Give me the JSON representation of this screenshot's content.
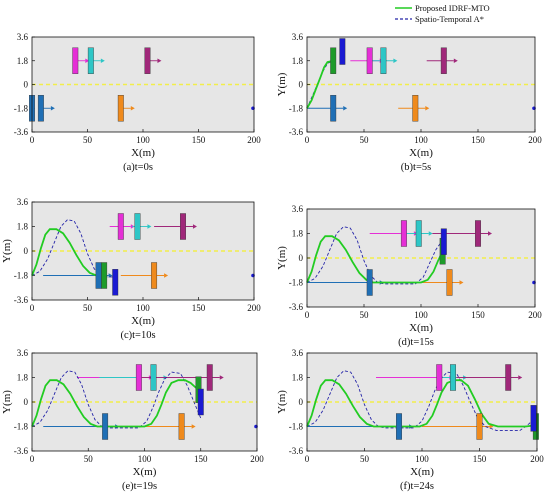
{
  "legend": {
    "entries": [
      {
        "label": "Proposed IDRF-MTO",
        "color": "#22cc22",
        "style": "solid"
      },
      {
        "label": "Spatio-Temporal A*",
        "color": "#2424a8",
        "style": "dashed"
      }
    ],
    "placement": "top-right"
  },
  "colors": {
    "plot_bg": "#e6e6e6",
    "centerline": "#f2ee4a",
    "ego_path": "#22cc22",
    "astar_path": "#2424a8",
    "vehicles": {
      "magenta": "#e52fd6",
      "cyan": "#2ec6c6",
      "purple": "#a0287a",
      "blue": "#1f6fb5",
      "orange": "#ef8a1c",
      "green": "#1e9b2a",
      "navy": "#1a1ad2"
    }
  },
  "chart_data": [
    {
      "type": "scatter",
      "caption": "(a)t=0s",
      "xlabel": "X(m)",
      "ylabel": "Y(m)",
      "xlim": [
        0,
        200
      ],
      "ylim": [
        -3.6,
        3.6
      ],
      "xticks": [
        "0",
        "50",
        "100",
        "150",
        "200"
      ],
      "yticks": [
        "3.6",
        "1.8",
        "0",
        "-1.8",
        "-3.6"
      ],
      "ylabel_visible": false,
      "ego_path": [],
      "astar_path": [],
      "vehicles": [
        {
          "x": 0,
          "y": -1.8,
          "color": "blue"
        },
        {
          "x": 8,
          "y": -1.8,
          "color": "blue",
          "trail_from": 8
        },
        {
          "x": 39,
          "y": 1.8,
          "color": "magenta",
          "trail_from": 39
        },
        {
          "x": 53,
          "y": 1.8,
          "color": "cyan",
          "trail_from": 53
        },
        {
          "x": 104,
          "y": 1.8,
          "color": "purple",
          "trail_from": 104
        },
        {
          "x": 80,
          "y": -1.8,
          "color": "orange",
          "trail_from": 80
        },
        {
          "x": 200,
          "y": -1.8,
          "color": "navy",
          "dot": true
        }
      ]
    },
    {
      "type": "scatter",
      "caption": "(b)t=5s",
      "xlabel": "X(m)",
      "ylabel": "Y(m)",
      "xlim": [
        0,
        200
      ],
      "ylim": [
        -3.6,
        3.6
      ],
      "xticks": [
        "0",
        "50",
        "100",
        "150",
        "200"
      ],
      "yticks": [
        "3.6",
        "1.8",
        "0",
        "-1.8",
        "-3.6"
      ],
      "ylabel_visible": true,
      "ego_path": [
        [
          0,
          -1.8
        ],
        [
          4,
          -1.2
        ],
        [
          8,
          -0.3
        ],
        [
          12,
          0.6
        ],
        [
          15,
          1.3
        ],
        [
          18,
          1.7
        ],
        [
          23,
          1.8
        ]
      ],
      "astar_path": [
        [
          0,
          -1.8
        ],
        [
          4,
          -1.0
        ],
        [
          9,
          0.0
        ],
        [
          14,
          1.0
        ],
        [
          18,
          1.6
        ],
        [
          23,
          1.8
        ]
      ],
      "vehicles": [
        {
          "x": 23,
          "y": 1.8,
          "color": "green"
        },
        {
          "x": 31,
          "y": 2.5,
          "color": "navy"
        },
        {
          "x": 23,
          "y": -1.8,
          "color": "blue",
          "trail_from": 0
        },
        {
          "x": 55,
          "y": 1.8,
          "color": "magenta",
          "trail_from": 38
        },
        {
          "x": 67,
          "y": 1.8,
          "color": "cyan",
          "trail_from": 54
        },
        {
          "x": 120,
          "y": 1.8,
          "color": "purple",
          "trail_from": 105
        },
        {
          "x": 95,
          "y": -1.8,
          "color": "orange",
          "trail_from": 80
        },
        {
          "x": 200,
          "y": -1.8,
          "color": "navy",
          "dot": true
        }
      ]
    },
    {
      "type": "scatter",
      "caption": "(c)t=10s",
      "xlabel": "X(m)",
      "ylabel": "Y(m)",
      "xlim": [
        0,
        200
      ],
      "ylim": [
        -3.6,
        3.6
      ],
      "xticks": [
        "0",
        "50",
        "100",
        "150",
        "200"
      ],
      "yticks": [
        "3.6",
        "1.8",
        "0",
        "-1.8",
        "-3.6"
      ],
      "ylabel_visible": true,
      "ego_path": [
        [
          0,
          -1.8
        ],
        [
          4,
          -1.0
        ],
        [
          8,
          0.2
        ],
        [
          12,
          1.2
        ],
        [
          16,
          1.6
        ],
        [
          22,
          1.6
        ],
        [
          28,
          1.3
        ],
        [
          34,
          0.6
        ],
        [
          40,
          -0.3
        ],
        [
          46,
          -1.1
        ],
        [
          52,
          -1.6
        ],
        [
          58,
          -1.8
        ],
        [
          65,
          -1.8
        ]
      ],
      "astar_path": [
        [
          0,
          -1.8
        ],
        [
          7,
          -1.5
        ],
        [
          14,
          -0.6
        ],
        [
          20,
          0.6
        ],
        [
          26,
          1.8
        ],
        [
          32,
          2.3
        ],
        [
          38,
          2.2
        ],
        [
          44,
          1.3
        ],
        [
          50,
          -0.2
        ],
        [
          56,
          -1.3
        ],
        [
          62,
          -1.8
        ],
        [
          68,
          -1.9
        ],
        [
          75,
          -1.9
        ]
      ],
      "vehicles": [
        {
          "x": 65,
          "y": -1.8,
          "color": "green"
        },
        {
          "x": 75,
          "y": -2.3,
          "color": "navy"
        },
        {
          "x": 60,
          "y": -1.8,
          "color": "blue",
          "trail_from": 10
        },
        {
          "x": 80,
          "y": 1.8,
          "color": "magenta",
          "trail_from": 70
        },
        {
          "x": 95,
          "y": 1.8,
          "color": "cyan",
          "trail_from": 90
        },
        {
          "x": 136,
          "y": 1.8,
          "color": "purple",
          "trail_from": 110
        },
        {
          "x": 110,
          "y": -1.8,
          "color": "orange",
          "trail_from": 80
        },
        {
          "x": 200,
          "y": -1.8,
          "color": "navy",
          "dot": true
        }
      ]
    },
    {
      "type": "scatter",
      "caption": "(d)t=15s",
      "xlabel": "X(m)",
      "ylabel": "Y(m)",
      "xlim": [
        0,
        200
      ],
      "ylim": [
        -3.6,
        3.6
      ],
      "xticks": [
        "0",
        "50",
        "100",
        "150",
        "200"
      ],
      "yticks": [
        "3.6",
        "1.8",
        "0",
        "-1.8",
        "-3.6"
      ],
      "ylabel_visible": true,
      "ego_path": [
        [
          0,
          -1.8
        ],
        [
          4,
          -1.0
        ],
        [
          8,
          0.2
        ],
        [
          12,
          1.2
        ],
        [
          16,
          1.6
        ],
        [
          22,
          1.6
        ],
        [
          28,
          1.3
        ],
        [
          34,
          0.6
        ],
        [
          40,
          -0.3
        ],
        [
          46,
          -1.1
        ],
        [
          52,
          -1.6
        ],
        [
          58,
          -1.8
        ],
        [
          80,
          -1.8
        ],
        [
          100,
          -1.8
        ],
        [
          106,
          -1.6
        ],
        [
          111,
          -1.0
        ],
        [
          115,
          -0.2
        ],
        [
          119,
          0.5
        ]
      ],
      "astar_path": [
        [
          0,
          -1.8
        ],
        [
          7,
          -1.5
        ],
        [
          14,
          -0.6
        ],
        [
          20,
          0.6
        ],
        [
          26,
          1.8
        ],
        [
          32,
          2.3
        ],
        [
          38,
          2.2
        ],
        [
          44,
          1.3
        ],
        [
          50,
          -0.2
        ],
        [
          56,
          -1.3
        ],
        [
          62,
          -1.8
        ],
        [
          68,
          -1.9
        ],
        [
          95,
          -1.9
        ],
        [
          102,
          -1.4
        ],
        [
          108,
          -0.3
        ],
        [
          113,
          0.6
        ],
        [
          118,
          1.2
        ],
        [
          121,
          1.4
        ]
      ],
      "vehicles": [
        {
          "x": 119,
          "y": 0.5,
          "color": "green"
        },
        {
          "x": 120,
          "y": 1.2,
          "color": "navy"
        },
        {
          "x": 55,
          "y": -1.8,
          "color": "blue",
          "trail_from": 0
        },
        {
          "x": 85,
          "y": 1.8,
          "color": "magenta",
          "trail_from": 55
        },
        {
          "x": 98,
          "y": 1.8,
          "color": "cyan",
          "trail_from": 85
        },
        {
          "x": 150,
          "y": 1.8,
          "color": "purple",
          "trail_from": 110
        },
        {
          "x": 125,
          "y": -1.8,
          "color": "orange",
          "trail_from": 90
        },
        {
          "x": 200,
          "y": -1.8,
          "color": "navy",
          "dot": true
        }
      ]
    },
    {
      "type": "scatter",
      "caption": "(e)t=19s",
      "xlabel": "X(m)",
      "ylabel": "Y(m)",
      "xlim": [
        0,
        200
      ],
      "ylim": [
        -3.6,
        3.6
      ],
      "xticks": [
        "0",
        "50",
        "100",
        "150",
        "200"
      ],
      "yticks": [
        "3.6",
        "1.8",
        "0",
        "-1.8",
        "-3.6"
      ],
      "ylabel_visible": true,
      "ego_path": [
        [
          0,
          -1.8
        ],
        [
          4,
          -1.0
        ],
        [
          8,
          0.2
        ],
        [
          12,
          1.2
        ],
        [
          16,
          1.6
        ],
        [
          22,
          1.6
        ],
        [
          28,
          1.3
        ],
        [
          34,
          0.6
        ],
        [
          40,
          -0.3
        ],
        [
          46,
          -1.1
        ],
        [
          52,
          -1.6
        ],
        [
          58,
          -1.8
        ],
        [
          80,
          -1.8
        ],
        [
          100,
          -1.8
        ],
        [
          106,
          -1.6
        ],
        [
          111,
          -1.0
        ],
        [
          115,
          -0.2
        ],
        [
          119,
          0.7
        ],
        [
          124,
          1.4
        ],
        [
          130,
          1.6
        ],
        [
          136,
          1.6
        ],
        [
          141,
          1.4
        ],
        [
          145,
          1.1
        ],
        [
          148,
          0.9
        ]
      ],
      "astar_path": [
        [
          0,
          -1.8
        ],
        [
          7,
          -1.5
        ],
        [
          14,
          -0.6
        ],
        [
          20,
          0.6
        ],
        [
          26,
          1.8
        ],
        [
          32,
          2.3
        ],
        [
          38,
          2.2
        ],
        [
          44,
          1.3
        ],
        [
          50,
          -0.2
        ],
        [
          56,
          -1.3
        ],
        [
          62,
          -1.8
        ],
        [
          68,
          -1.9
        ],
        [
          95,
          -1.9
        ],
        [
          102,
          -1.4
        ],
        [
          108,
          -0.3
        ],
        [
          113,
          0.8
        ],
        [
          118,
          1.7
        ],
        [
          124,
          2.2
        ],
        [
          132,
          2.1
        ],
        [
          138,
          1.2
        ],
        [
          143,
          0.2
        ],
        [
          147,
          -0.6
        ],
        [
          150,
          -1.2
        ]
      ],
      "vehicles": [
        {
          "x": 148,
          "y": 0.9,
          "color": "green"
        },
        {
          "x": 150,
          "y": 0.0,
          "color": "navy"
        },
        {
          "x": 65,
          "y": -1.8,
          "color": "blue",
          "trail_from": 10
        },
        {
          "x": 95,
          "y": 1.8,
          "color": "magenta",
          "trail_from": 40
        },
        {
          "x": 108,
          "y": 1.8,
          "color": "cyan",
          "trail_from": 60
        },
        {
          "x": 158,
          "y": 1.8,
          "color": "purple",
          "trail_from": 95
        },
        {
          "x": 133,
          "y": -1.8,
          "color": "orange",
          "trail_from": 80
        },
        {
          "x": 200,
          "y": -1.8,
          "color": "navy",
          "dot": true
        }
      ]
    },
    {
      "type": "scatter",
      "caption": "(f)t=24s",
      "xlabel": "X(m)",
      "ylabel": "Y(m)",
      "xlim": [
        0,
        200
      ],
      "ylim": [
        -3.6,
        3.6
      ],
      "xticks": [
        "0",
        "50",
        "100",
        "150",
        "200"
      ],
      "yticks": [
        "3.6",
        "1.8",
        "0",
        "-1.8",
        "-3.6"
      ],
      "ylabel_visible": true,
      "ego_path": [
        [
          0,
          -1.8
        ],
        [
          4,
          -1.0
        ],
        [
          8,
          0.2
        ],
        [
          12,
          1.2
        ],
        [
          16,
          1.6
        ],
        [
          22,
          1.6
        ],
        [
          28,
          1.3
        ],
        [
          34,
          0.6
        ],
        [
          40,
          -0.3
        ],
        [
          46,
          -1.1
        ],
        [
          52,
          -1.6
        ],
        [
          58,
          -1.8
        ],
        [
          80,
          -1.8
        ],
        [
          98,
          -1.8
        ],
        [
          104,
          -1.6
        ],
        [
          109,
          -1.0
        ],
        [
          113,
          -0.2
        ],
        [
          117,
          0.7
        ],
        [
          122,
          1.4
        ],
        [
          128,
          1.6
        ],
        [
          134,
          1.6
        ],
        [
          140,
          1.2
        ],
        [
          146,
          0.2
        ],
        [
          152,
          -0.9
        ],
        [
          158,
          -1.6
        ],
        [
          166,
          -1.8
        ],
        [
          190,
          -1.8
        ],
        [
          200,
          -1.7
        ]
      ],
      "astar_path": [
        [
          0,
          -1.8
        ],
        [
          7,
          -1.5
        ],
        [
          14,
          -0.6
        ],
        [
          20,
          0.6
        ],
        [
          26,
          1.8
        ],
        [
          32,
          2.3
        ],
        [
          38,
          2.2
        ],
        [
          44,
          1.3
        ],
        [
          50,
          -0.2
        ],
        [
          56,
          -1.3
        ],
        [
          62,
          -1.8
        ],
        [
          68,
          -1.9
        ],
        [
          93,
          -1.9
        ],
        [
          100,
          -1.4
        ],
        [
          106,
          -0.3
        ],
        [
          111,
          0.8
        ],
        [
          116,
          1.7
        ],
        [
          122,
          2.2
        ],
        [
          130,
          2.1
        ],
        [
          136,
          1.2
        ],
        [
          142,
          0.0
        ],
        [
          148,
          -1.1
        ],
        [
          155,
          -1.8
        ],
        [
          165,
          -2.1
        ],
        [
          185,
          -2.1
        ],
        [
          193,
          -1.6
        ],
        [
          198,
          -1.2
        ]
      ],
      "vehicles": [
        {
          "x": 199,
          "y": -1.8,
          "color": "green"
        },
        {
          "x": 197,
          "y": -1.2,
          "color": "navy"
        },
        {
          "x": 80,
          "y": -1.8,
          "color": "blue",
          "trail_from": 0
        },
        {
          "x": 115,
          "y": 1.8,
          "color": "magenta",
          "trail_from": 60
        },
        {
          "x": 127,
          "y": 1.8,
          "color": "cyan",
          "trail_from": 118
        },
        {
          "x": 175,
          "y": 1.8,
          "color": "purple",
          "trail_from": 130
        },
        {
          "x": 150,
          "y": -1.8,
          "color": "orange",
          "trail_from": 100
        }
      ]
    }
  ]
}
